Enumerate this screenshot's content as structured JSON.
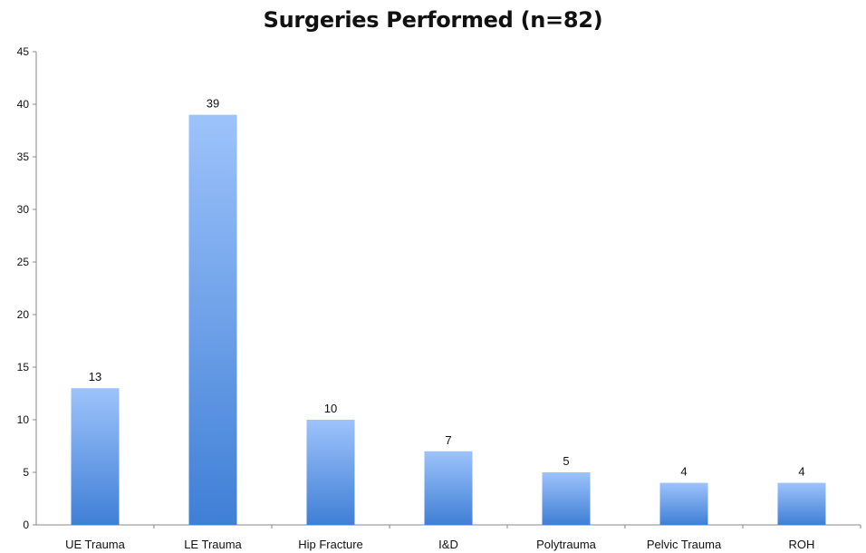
{
  "chart_data": {
    "type": "bar",
    "title": "Surgeries Performed (n=82)",
    "xlabel": "",
    "ylabel": "",
    "categories": [
      "UE Trauma",
      "LE Trauma",
      "Hip Fracture",
      "I&D",
      "Polytrauma",
      "Pelvic Trauma",
      "ROH"
    ],
    "values": [
      13,
      39,
      10,
      7,
      5,
      4,
      4
    ],
    "ylim": [
      0,
      45
    ],
    "yticks": [
      0,
      5,
      10,
      15,
      20,
      25,
      30,
      35,
      40,
      45
    ],
    "grid": false,
    "legend": "none",
    "data_labels": true,
    "colors": {
      "bar_top": "#9dc3fb",
      "bar_bottom": "#3f7fd6",
      "axis": "#8a8a8a",
      "text": "#111111"
    }
  }
}
